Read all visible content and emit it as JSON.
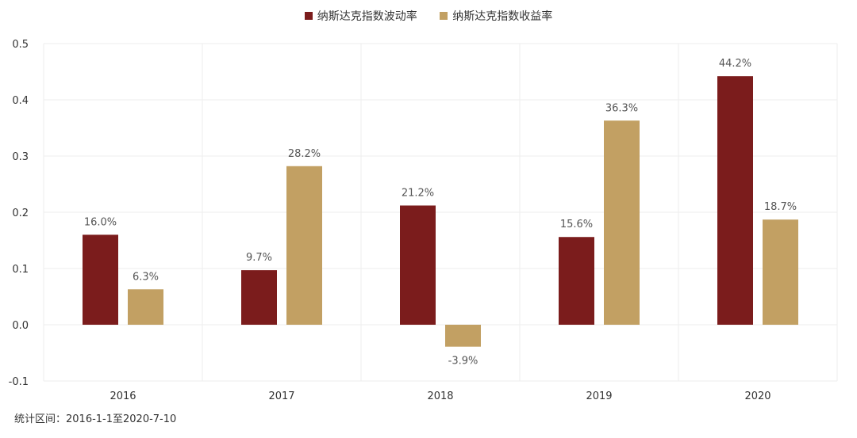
{
  "chart_data": {
    "type": "bar",
    "categories": [
      "2016",
      "2017",
      "2018",
      "2019",
      "2020"
    ],
    "series": [
      {
        "name": "纳斯达克指数波动率",
        "color": "#7b1c1c",
        "values": [
          0.16,
          0.097,
          0.212,
          0.156,
          0.442
        ],
        "labels": [
          "16.0%",
          "9.7%",
          "21.2%",
          "15.6%",
          "44.2%"
        ]
      },
      {
        "name": "纳斯达克指数收益率",
        "color": "#c2a063",
        "values": [
          0.063,
          0.282,
          -0.039,
          0.363,
          0.187
        ],
        "labels": [
          "6.3%",
          "28.2%",
          "-3.9%",
          "36.3%",
          "18.7%"
        ]
      }
    ],
    "ylim": [
      -0.1,
      0.5
    ],
    "yticks": [
      "-0.1",
      "0.0",
      "0.1",
      "0.2",
      "0.3",
      "0.4",
      "0.5"
    ],
    "ytick_values": [
      -0.1,
      0.0,
      0.1,
      0.2,
      0.3,
      0.4,
      0.5
    ],
    "legend_position": "top-center",
    "grid": true
  },
  "footnote": "统计区间：2016-1-1至2020-7-10"
}
